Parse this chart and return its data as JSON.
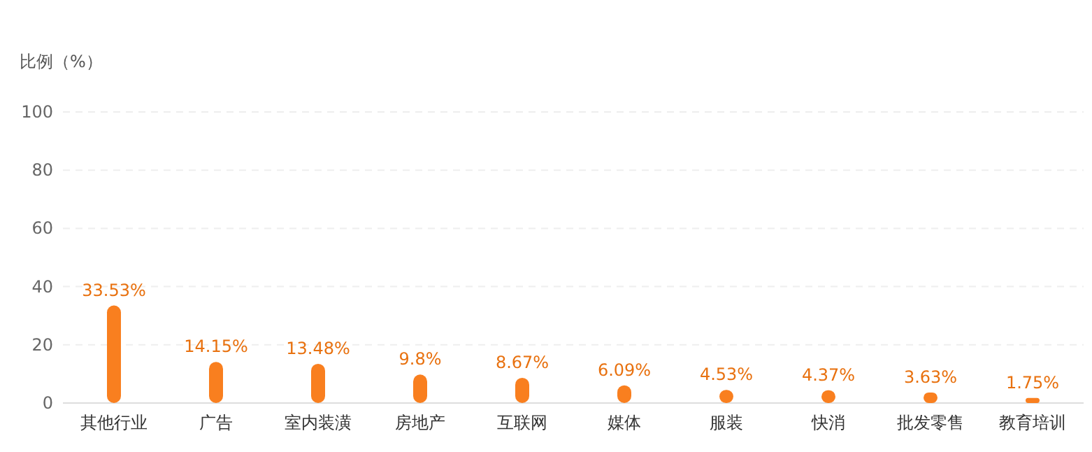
{
  "chart_data": {
    "type": "bar",
    "ylabel": "比例（%）",
    "categories": [
      "其他行业",
      "广告",
      "室内装潢",
      "房地产",
      "互联网",
      "媒体",
      "服装",
      "快消",
      "批发零售",
      "教育培训"
    ],
    "values": [
      33.53,
      14.15,
      13.48,
      9.8,
      8.67,
      6.09,
      4.53,
      4.37,
      3.63,
      1.75
    ],
    "value_labels": [
      "33.53%",
      "14.15%",
      "13.48%",
      "9.8%",
      "8.67%",
      "6.09%",
      "4.53%",
      "4.37%",
      "3.63%",
      "1.75%"
    ],
    "color": "#f97f1f",
    "ylim": [
      0,
      100
    ],
    "yticks": [
      0,
      20,
      40,
      60,
      80,
      100
    ],
    "grid": "y"
  }
}
